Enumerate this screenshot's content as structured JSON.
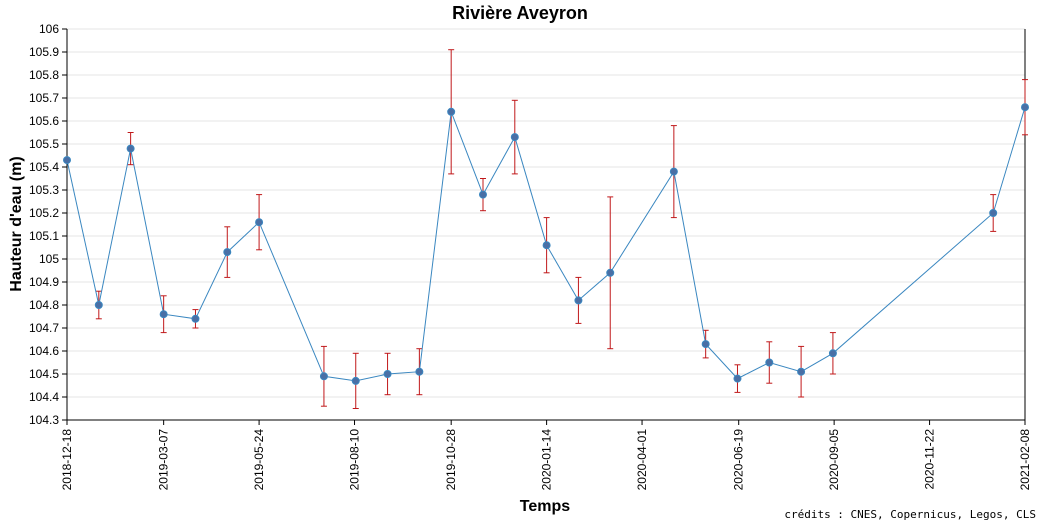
{
  "chart_data": {
    "type": "line",
    "title": "Rivière Aveyron",
    "xlabel": "Temps",
    "ylabel": "Hauteur d'eau (m)",
    "credits": "crédits : CNES, Copernicus, Legos, CLS",
    "x_range": [
      "2018-12-18",
      "2021-02-08"
    ],
    "ylim": [
      104.3,
      106
    ],
    "x_ticks": [
      "2018-12-18",
      "2019-03-07",
      "2019-05-24",
      "2019-08-10",
      "2019-10-28",
      "2020-01-14",
      "2020-04-01",
      "2020-06-19",
      "2020-09-05",
      "2020-11-22",
      "2021-02-08"
    ],
    "y_ticks": [
      "104.3",
      "104.4",
      "104.5",
      "104.6",
      "104.7",
      "104.8",
      "104.9",
      "105",
      "105.1",
      "105.2",
      "105.3",
      "105.4",
      "105.5",
      "105.6",
      "105.7",
      "105.8",
      "105.9",
      "106"
    ],
    "grid": "horizontal",
    "colors": {
      "line": "#3a87c0",
      "marker_fill": "#4a6fa5",
      "error_bar": "#c0181a",
      "grid": "#e5e5e5"
    },
    "series": [
      {
        "points": [
          {
            "x": "2018-12-18",
            "y": 105.43,
            "err_low": 105.43,
            "err_high": 105.43
          },
          {
            "x": "2019-01-13",
            "y": 104.8,
            "err_low": 104.74,
            "err_high": 104.86
          },
          {
            "x": "2019-02-08",
            "y": 105.48,
            "err_low": 105.41,
            "err_high": 105.55
          },
          {
            "x": "2019-03-07",
            "y": 104.76,
            "err_low": 104.68,
            "err_high": 104.84
          },
          {
            "x": "2019-04-02",
            "y": 104.74,
            "err_low": 104.7,
            "err_high": 104.78
          },
          {
            "x": "2019-04-28",
            "y": 105.03,
            "err_low": 104.92,
            "err_high": 105.14
          },
          {
            "x": "2019-05-24",
            "y": 105.16,
            "err_low": 105.04,
            "err_high": 105.28
          },
          {
            "x": "2019-07-16",
            "y": 104.49,
            "err_low": 104.36,
            "err_high": 104.62
          },
          {
            "x": "2019-08-11",
            "y": 104.47,
            "err_low": 104.35,
            "err_high": 104.59
          },
          {
            "x": "2019-09-06",
            "y": 104.5,
            "err_low": 104.41,
            "err_high": 104.59
          },
          {
            "x": "2019-10-02",
            "y": 104.51,
            "err_low": 104.41,
            "err_high": 104.61
          },
          {
            "x": "2019-10-28",
            "y": 105.64,
            "err_low": 105.37,
            "err_high": 105.91
          },
          {
            "x": "2019-11-23",
            "y": 105.28,
            "err_low": 105.21,
            "err_high": 105.35
          },
          {
            "x": "2019-12-19",
            "y": 105.53,
            "err_low": 105.37,
            "err_high": 105.69
          },
          {
            "x": "2020-01-14",
            "y": 105.06,
            "err_low": 104.94,
            "err_high": 105.18
          },
          {
            "x": "2020-02-09",
            "y": 104.82,
            "err_low": 104.72,
            "err_high": 104.92
          },
          {
            "x": "2020-03-06",
            "y": 104.94,
            "err_low": 104.61,
            "err_high": 105.27
          },
          {
            "x": "2020-04-27",
            "y": 105.38,
            "err_low": 105.18,
            "err_high": 105.58
          },
          {
            "x": "2020-05-23",
            "y": 104.63,
            "err_low": 104.57,
            "err_high": 104.69
          },
          {
            "x": "2020-06-18",
            "y": 104.48,
            "err_low": 104.42,
            "err_high": 104.54
          },
          {
            "x": "2020-07-14",
            "y": 104.55,
            "err_low": 104.46,
            "err_high": 104.64
          },
          {
            "x": "2020-08-09",
            "y": 104.51,
            "err_low": 104.4,
            "err_high": 104.62
          },
          {
            "x": "2020-09-04",
            "y": 104.59,
            "err_low": 104.5,
            "err_high": 104.68
          },
          {
            "x": "2021-01-13",
            "y": 105.2,
            "err_low": 105.12,
            "err_high": 105.28
          },
          {
            "x": "2021-02-08",
            "y": 105.66,
            "err_low": 105.54,
            "err_high": 105.78
          }
        ]
      }
    ]
  }
}
